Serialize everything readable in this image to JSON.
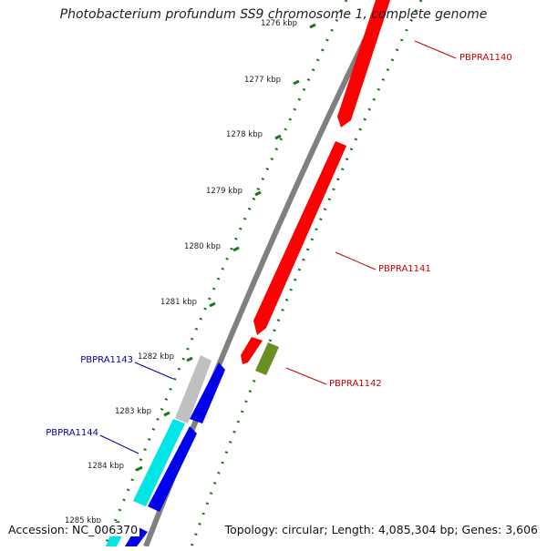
{
  "title": "Photobacterium profundum SS9 chromosome 1, complete genome",
  "accession": "Accession: NC_006370",
  "summary": "Topology: circular; Length: 4,085,304 bp; Genes: 3,606",
  "colors": {
    "backbone": "#808080",
    "ruler": "#1a7a1a",
    "forward_gene": "#ff0000",
    "reverse_gene": "#0000ee",
    "rna_forward": "#6b8e23",
    "cyan_gene": "#00e5e5",
    "grey_gene": "#c0c0c0",
    "label_forward": "#cc0000",
    "label_reverse": "#0000aa"
  },
  "ticks": [
    {
      "label": "1276 kbp"
    },
    {
      "label": "1277 kbp"
    },
    {
      "label": "1278 kbp"
    },
    {
      "label": "1279 kbp"
    },
    {
      "label": "1280 kbp"
    },
    {
      "label": "1281 kbp"
    },
    {
      "label": "1282 kbp"
    },
    {
      "label": "1283 kbp"
    },
    {
      "label": "1284 kbp"
    },
    {
      "label": "1285 kbp"
    }
  ],
  "gene_labels": [
    {
      "id": "PBPRA1140",
      "strand": "forward"
    },
    {
      "id": "PBPRA1141",
      "strand": "forward"
    },
    {
      "id": "PBPRA1142",
      "strand": "forward"
    },
    {
      "id": "PBPRA1143",
      "strand": "reverse"
    },
    {
      "id": "PBPRA1144",
      "strand": "reverse"
    }
  ]
}
